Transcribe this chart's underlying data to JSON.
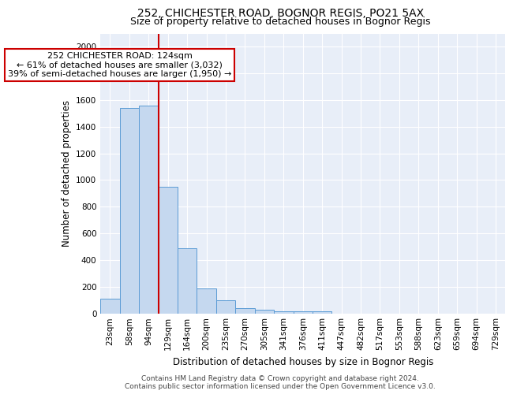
{
  "title1": "252, CHICHESTER ROAD, BOGNOR REGIS, PO21 5AX",
  "title2": "Size of property relative to detached houses in Bognor Regis",
  "xlabel": "Distribution of detached houses by size in Bognor Regis",
  "ylabel": "Number of detached properties",
  "categories": [
    "23sqm",
    "58sqm",
    "94sqm",
    "129sqm",
    "164sqm",
    "200sqm",
    "235sqm",
    "270sqm",
    "305sqm",
    "341sqm",
    "376sqm",
    "411sqm",
    "447sqm",
    "482sqm",
    "517sqm",
    "553sqm",
    "588sqm",
    "623sqm",
    "659sqm",
    "694sqm",
    "729sqm"
  ],
  "values": [
    110,
    1540,
    1560,
    950,
    490,
    185,
    100,
    38,
    25,
    15,
    15,
    15,
    0,
    0,
    0,
    0,
    0,
    0,
    0,
    0,
    0
  ],
  "bar_color": "#c5d8ef",
  "bar_edge_color": "#5b9bd5",
  "vline_color": "#cc0000",
  "annotation_line1": "252 CHICHESTER ROAD: 124sqm",
  "annotation_line2": "← 61% of detached houses are smaller (3,032)",
  "annotation_line3": "39% of semi-detached houses are larger (1,950) →",
  "annotation_box_color": "#ffffff",
  "annotation_box_edge": "#cc0000",
  "ylim": [
    0,
    2100
  ],
  "yticks": [
    0,
    200,
    400,
    600,
    800,
    1000,
    1200,
    1400,
    1600,
    1800,
    2000
  ],
  "background_color": "#e8eef8",
  "grid_color": "#ffffff",
  "footer": "Contains HM Land Registry data © Crown copyright and database right 2024.\nContains public sector information licensed under the Open Government Licence v3.0.",
  "title1_fontsize": 10,
  "title2_fontsize": 9,
  "xlabel_fontsize": 8.5,
  "ylabel_fontsize": 8.5,
  "tick_fontsize": 7.5,
  "annotation_fontsize": 8,
  "footer_fontsize": 6.5
}
